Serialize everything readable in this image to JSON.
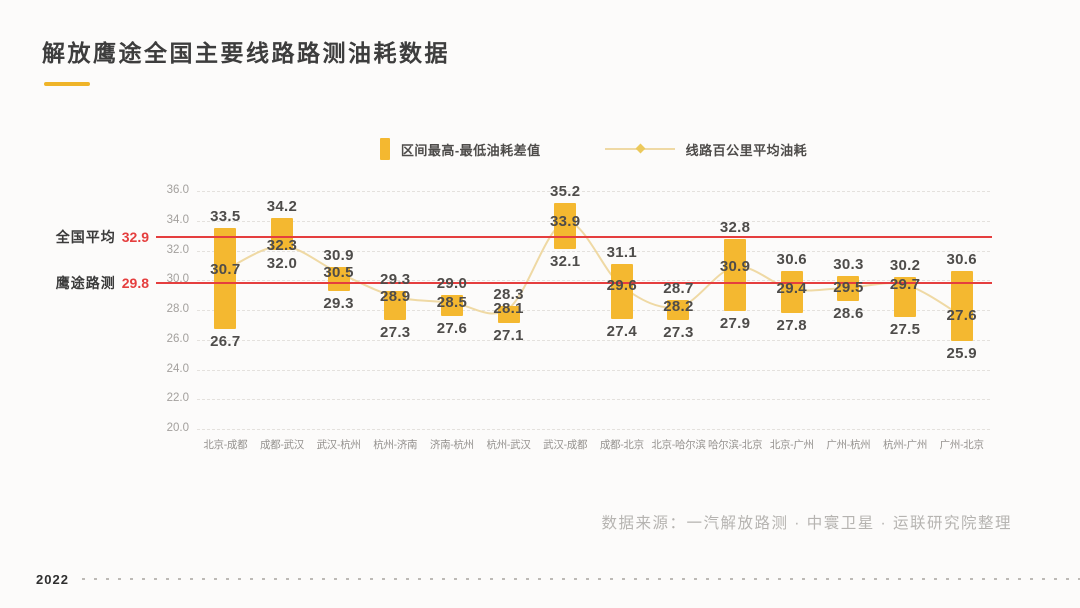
{
  "header": {
    "title": "解放鹰途全国主要线路路测油耗数据"
  },
  "legend": {
    "bar_label": "区间最高-最低油耗差值",
    "line_label": "线路百公里平均油耗"
  },
  "footer": {
    "year": "2022",
    "source": "数据来源：一汽解放路测 · 中寰卫星 · 运联研究院整理"
  },
  "colors": {
    "bar": "#f4b830",
    "line": "#efd9a4",
    "reference": "#e53e3e",
    "underline": "#efb428"
  },
  "chart_data": {
    "type": "bar",
    "subtype": "floating-range-bars-with-average-line",
    "title": "解放鹰途全国主要线路路测油耗数据",
    "categories": [
      "北京-成都",
      "成都-武汉",
      "武汉-杭州",
      "杭州-济南",
      "济南-杭州",
      "杭州-武汉",
      "武汉-成都",
      "成都-北京",
      "北京-哈尔滨",
      "哈尔滨-北京",
      "北京-广州",
      "广州-杭州",
      "杭州-广州",
      "广州-北京"
    ],
    "series": [
      {
        "name": "区间最高-最低油耗差值",
        "type": "range-bar",
        "high": [
          33.5,
          34.2,
          30.9,
          29.3,
          29.0,
          28.3,
          35.2,
          31.1,
          28.7,
          32.8,
          30.6,
          30.3,
          30.2,
          30.6
        ],
        "low": [
          26.7,
          32.0,
          29.3,
          27.3,
          27.6,
          27.1,
          32.1,
          27.4,
          27.3,
          27.9,
          27.8,
          28.6,
          27.5,
          25.9
        ]
      },
      {
        "name": "线路百公里平均油耗",
        "type": "line",
        "values": [
          30.7,
          32.3,
          30.5,
          28.9,
          28.5,
          28.1,
          33.9,
          29.6,
          28.2,
          30.9,
          29.4,
          29.5,
          29.7,
          27.6
        ]
      }
    ],
    "reference_lines": [
      {
        "label": "全国平均",
        "value": 32.9
      },
      {
        "label": "鹰途路测",
        "value": 29.8
      }
    ],
    "ylim": [
      20.0,
      36.0
    ],
    "ytick_step": 2.0,
    "ytick_format": "one-decimal",
    "xlabel": "",
    "ylabel": "",
    "grid": "horizontal-dashed",
    "legend_position": "top-center",
    "value_labels": "high, average and low value shown for every category"
  }
}
